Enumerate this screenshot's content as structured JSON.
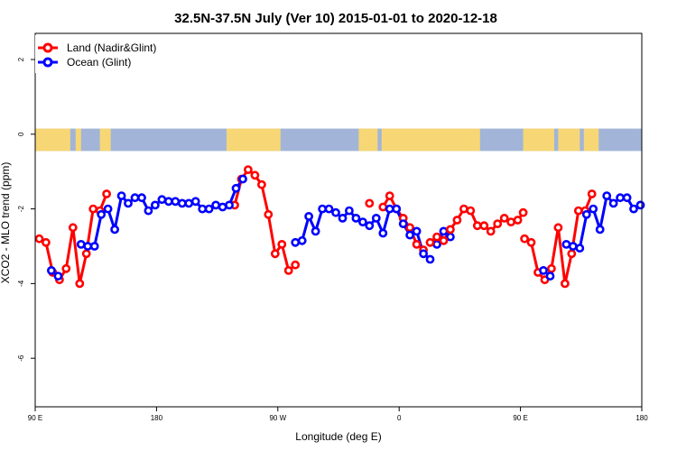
{
  "chart_data": {
    "type": "line",
    "title": "32.5N-37.5N July (Ver 10)   2015-01-01 to 2020-12-18",
    "xlabel": "Longitude (deg E)",
    "ylabel": "XCO2 - MLO trend (ppm)",
    "xlim": [
      90,
      540
    ],
    "ylim": [
      -7.3,
      2.7
    ],
    "x_ticks": [
      {
        "value": 90,
        "label": "90 E"
      },
      {
        "value": 180,
        "label": "180"
      },
      {
        "value": 270,
        "label": "90 W"
      },
      {
        "value": 360,
        "label": "0"
      },
      {
        "value": 450,
        "label": "90 E"
      },
      {
        "value": 540,
        "label": "180"
      }
    ],
    "y_ticks": [
      {
        "value": 2,
        "label": "2"
      },
      {
        "value": 0,
        "label": "0"
      },
      {
        "value": -2,
        "label": "-2"
      },
      {
        "value": -4,
        "label": "-4"
      },
      {
        "value": -6,
        "label": "-6"
      }
    ],
    "land_ocean_band": {
      "y_top": 0.15,
      "y_bottom": -0.45,
      "ocean_color": "#a2b5d8",
      "land_color": "#f7d775"
    },
    "legend": {
      "position": "top-left"
    },
    "series": [
      {
        "name": "Land (Nadir&Glint)",
        "color": "#ff0000",
        "segments": [
          [
            [
              93,
              -2.8
            ],
            [
              98,
              -2.9
            ],
            [
              103,
              -3.7
            ],
            [
              108,
              -3.9
            ],
            [
              113,
              -3.6
            ],
            [
              118,
              -2.5
            ],
            [
              123,
              -4.0
            ],
            [
              128,
              -3.2
            ],
            [
              133,
              -2.0
            ],
            [
              138,
              -2.05
            ],
            [
              143,
              -1.6
            ]
          ],
          [
            [
              238,
              -1.9
            ],
            [
              243,
              -1.2
            ],
            [
              248,
              -0.95
            ],
            [
              253,
              -1.1
            ],
            [
              258,
              -1.35
            ],
            [
              263,
              -2.15
            ],
            [
              268,
              -3.2
            ],
            [
              273,
              -2.95
            ],
            [
              278,
              -3.65
            ],
            [
              283,
              -3.5
            ]
          ],
          [
            [
              338,
              -1.85
            ]
          ],
          [
            [
              348,
              -1.95
            ],
            [
              353,
              -1.65
            ],
            [
              358,
              -2.0
            ],
            [
              363,
              -2.25
            ],
            [
              368,
              -2.5
            ],
            [
              373,
              -2.95
            ],
            [
              378,
              -3.1
            ]
          ],
          [
            [
              453,
              -2.8
            ],
            [
              458,
              -2.9
            ],
            [
              463,
              -3.7
            ],
            [
              468,
              -3.9
            ],
            [
              473,
              -3.6
            ],
            [
              478,
              -2.5
            ],
            [
              483,
              -4.0
            ],
            [
              488,
              -3.2
            ],
            [
              493,
              -2.05
            ],
            [
              498,
              -2.05
            ],
            [
              503,
              -1.6
            ]
          ]
        ]
      },
      {
        "name": "Ocean (Glint)",
        "color": "#0000ff",
        "segments": [
          [
            [
              102,
              -3.65
            ],
            [
              107,
              -3.8
            ]
          ],
          [
            [
              124,
              -2.95
            ],
            [
              129,
              -3.0
            ],
            [
              134,
              -3.0
            ],
            [
              139,
              -2.15
            ],
            [
              144,
              -2.0
            ],
            [
              149,
              -2.55
            ],
            [
              154,
              -1.65
            ],
            [
              159,
              -1.85
            ],
            [
              164,
              -1.7
            ],
            [
              169,
              -1.7
            ],
            [
              174,
              -2.05
            ],
            [
              179,
              -1.9
            ],
            [
              184,
              -1.75
            ],
            [
              189,
              -1.8
            ],
            [
              194,
              -1.8
            ],
            [
              199,
              -1.85
            ],
            [
              204,
              -1.85
            ],
            [
              209,
              -1.8
            ],
            [
              214,
              -2.0
            ],
            [
              219,
              -2.0
            ],
            [
              224,
              -1.9
            ],
            [
              229,
              -1.95
            ],
            [
              234,
              -1.9
            ],
            [
              239,
              -1.45
            ],
            [
              244,
              -1.2
            ]
          ],
          [
            [
              283,
              -2.9
            ],
            [
              288,
              -2.85
            ],
            [
              293,
              -2.2
            ],
            [
              298,
              -2.6
            ],
            [
              303,
              -2.0
            ],
            [
              308,
              -2.0
            ],
            [
              313,
              -2.1
            ],
            [
              318,
              -2.25
            ],
            [
              323,
              -2.05
            ],
            [
              328,
              -2.25
            ],
            [
              333,
              -2.35
            ],
            [
              338,
              -2.45
            ],
            [
              343,
              -2.25
            ],
            [
              348,
              -2.65
            ],
            [
              353,
              -2.0
            ],
            [
              358,
              -2.0
            ],
            [
              363,
              -2.4
            ],
            [
              368,
              -2.7
            ],
            [
              373,
              -2.6
            ],
            [
              378,
              -3.2
            ],
            [
              383,
              -3.35
            ]
          ],
          [
            [
              388,
              -2.95
            ],
            [
              393,
              -2.6
            ],
            [
              398,
              -2.75
            ]
          ],
          [
            [
              467,
              -3.65
            ],
            [
              472,
              -3.8
            ]
          ],
          [
            [
              484,
              -2.95
            ],
            [
              489,
              -3.0
            ],
            [
              494,
              -3.05
            ],
            [
              499,
              -2.15
            ],
            [
              504,
              -2.0
            ],
            [
              509,
              -2.55
            ],
            [
              514,
              -1.65
            ],
            [
              519,
              -1.85
            ],
            [
              524,
              -1.7
            ],
            [
              529,
              -1.7
            ],
            [
              534,
              -2.0
            ],
            [
              539,
              -1.9
            ]
          ]
        ]
      },
      {
        "name": "",
        "color": "#ff0000",
        "segments": [
          [
            [
              383,
              -2.9
            ],
            [
              388,
              -2.75
            ],
            [
              393,
              -2.85
            ],
            [
              398,
              -2.55
            ],
            [
              403,
              -2.3
            ],
            [
              408,
              -2.0
            ],
            [
              413,
              -2.05
            ],
            [
              418,
              -2.45
            ],
            [
              423,
              -2.45
            ],
            [
              428,
              -2.6
            ],
            [
              433,
              -2.4
            ],
            [
              438,
              -2.25
            ],
            [
              443,
              -2.35
            ],
            [
              448,
              -2.3
            ],
            [
              452,
              -2.1
            ]
          ]
        ]
      }
    ]
  }
}
